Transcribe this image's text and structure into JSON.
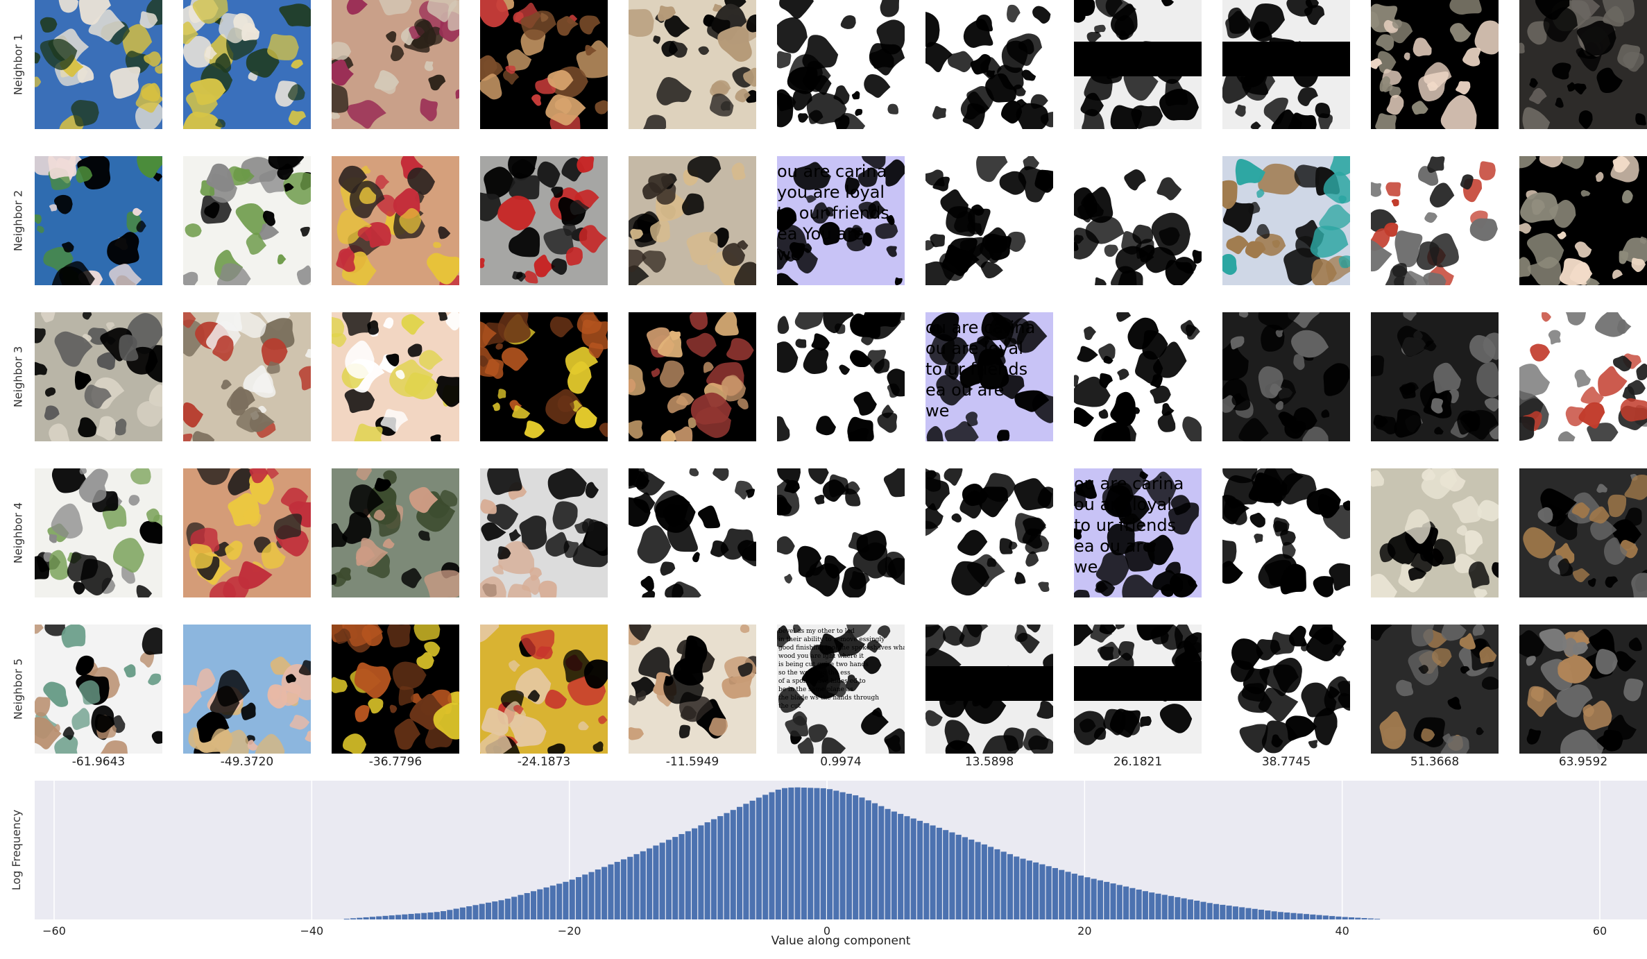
{
  "row_labels": [
    "Neighbor 1",
    "Neighbor 2",
    "Neighbor 3",
    "Neighbor 4",
    "Neighbor 5"
  ],
  "column_values": [
    "-61.9643",
    "-49.3720",
    "-36.7796",
    "-24.1873",
    "-11.5949",
    "0.9974",
    "13.5898",
    "26.1821",
    "38.7745",
    "51.3668",
    "63.9592"
  ],
  "thumbnails": [
    [
      {
        "icon": "water-slide-photo",
        "colors": [
          "#3a6fb8",
          "#e9e2d6",
          "#d8c040",
          "#1f3a1f"
        ]
      },
      {
        "icon": "water-slide-photo",
        "colors": [
          "#3a70bc",
          "#ede6da",
          "#d6c446",
          "#203b20"
        ]
      },
      {
        "icon": "sunglasses-woman-photo",
        "colors": [
          "#c9a089",
          "#2b2118",
          "#d4c8b6",
          "#9b2f56"
        ]
      },
      {
        "icon": "masked-pug-photo",
        "colors": [
          "#000000",
          "#d9a56e",
          "#7a4c2a",
          "#c93d3a"
        ]
      },
      {
        "icon": "pug-photo",
        "colors": [
          "#ded2bd",
          "#2a2724",
          "#b59a78",
          "#000000"
        ]
      },
      {
        "icon": "white-mask-pattern",
        "colors": [
          "#ffffff",
          "#000000"
        ]
      },
      {
        "icon": "white-mask-pattern",
        "colors": [
          "#ffffff",
          "#000000"
        ]
      },
      {
        "icon": "banded-mask-pattern",
        "colors": [
          "#eeeeee",
          "#000000"
        ]
      },
      {
        "icon": "banded-mask-pattern",
        "colors": [
          "#eeeeee",
          "#000000"
        ]
      },
      {
        "icon": "dark-scene-photo",
        "colors": [
          "#000000",
          "#8f8a7a",
          "#f0d9c8"
        ]
      },
      {
        "icon": "desk-device-photo",
        "colors": [
          "#2d2b29",
          "#6b6761",
          "#000000"
        ]
      }
    ],
    [
      {
        "icon": "hand-water-photo",
        "colors": [
          "#2f6cb0",
          "#000000",
          "#f0dcd8",
          "#4c8d3a"
        ]
      },
      {
        "icon": "elephant-statue-photo",
        "colors": [
          "#f3f3ef",
          "#6c9a48",
          "#888888",
          "#000000"
        ]
      },
      {
        "icon": "party-woman-photo",
        "colors": [
          "#d5a07c",
          "#c42d3a",
          "#e7c23a",
          "#2d2320"
        ]
      },
      {
        "icon": "dark-figure-photo",
        "colors": [
          "#a6a6a4",
          "#1d1d1d",
          "#c72525",
          "#000000"
        ]
      },
      {
        "icon": "pug-photo",
        "colors": [
          "#c5b9a6",
          "#332a22",
          "#d7bb8c",
          "#000000"
        ]
      },
      {
        "icon": "text-page-photo",
        "colors": [
          "#c8c3f6",
          "#000000"
        ],
        "caption": "ou are carina you are loyal to our friends ea You are we"
      },
      {
        "icon": "white-mask-pattern",
        "colors": [
          "#ffffff",
          "#000000"
        ]
      },
      {
        "icon": "white-mask-pattern",
        "colors": [
          "#ffffff",
          "#000000"
        ]
      },
      {
        "icon": "tv-box-photo",
        "colors": [
          "#cfd7e6",
          "#111111",
          "#2ca6a2",
          "#a07a4c"
        ]
      },
      {
        "icon": "dj-deck-photo",
        "colors": [
          "#ffffff",
          "#1d1d1d",
          "#c23c2c",
          "#6f6f6f"
        ]
      },
      {
        "icon": "dark-scene-photo",
        "colors": [
          "#000000",
          "#8d8a7b",
          "#f2dcc8"
        ]
      }
    ],
    [
      {
        "icon": "grey-scene-photo",
        "colors": [
          "#b9b5a7",
          "#000000",
          "#575757",
          "#d8d2c4"
        ]
      },
      {
        "icon": "bride-photo",
        "colors": [
          "#cfc3ae",
          "#f3f3f1",
          "#7b6f5d",
          "#b73c2e"
        ]
      },
      {
        "icon": "masked-child-photo",
        "colors": [
          "#f2d6c2",
          "#000000",
          "#e0d44c",
          "#ffffff"
        ]
      },
      {
        "icon": "dark-fruit-photo",
        "colors": [
          "#000000",
          "#e3c92c",
          "#6a3316",
          "#b6551f"
        ]
      },
      {
        "icon": "masked-pug-photo",
        "colors": [
          "#000000",
          "#c8966a",
          "#913531",
          "#e2b47a"
        ]
      },
      {
        "icon": "white-mask-pattern",
        "colors": [
          "#ffffff",
          "#000000"
        ]
      },
      {
        "icon": "text-page-photo",
        "colors": [
          "#c8c3f6",
          "#000000"
        ],
        "caption": "ou are carina ou are loyal to ur friends ea ou are we"
      },
      {
        "icon": "white-mask-pattern",
        "colors": [
          "#ffffff",
          "#000000"
        ]
      },
      {
        "icon": "stereo-photo",
        "colors": [
          "#1d1d1d",
          "#666666",
          "#000000"
        ]
      },
      {
        "icon": "stereo-photo",
        "colors": [
          "#1c1c1c",
          "#686868",
          "#000000"
        ]
      },
      {
        "icon": "dj-deck-photo",
        "colors": [
          "#ffffff",
          "#1d1d1d",
          "#c23c2c",
          "#6f6f6f"
        ]
      }
    ],
    [
      {
        "icon": "elephant-statue-photo",
        "colors": [
          "#f2f2ee",
          "#000000",
          "#8a8a8a",
          "#7aa259"
        ]
      },
      {
        "icon": "party-woman-photo",
        "colors": [
          "#d49c78",
          "#c12f3b",
          "#ebc741",
          "#2b2420"
        ]
      },
      {
        "icon": "man-outdoors-photo",
        "colors": [
          "#7d8a78",
          "#cc9b84",
          "#3c4b2e",
          "#000000"
        ]
      },
      {
        "icon": "tuxedo-man-photo",
        "colors": [
          "#dcdcdc",
          "#111111",
          "#d7ad95",
          "#000000"
        ]
      },
      {
        "icon": "white-mask-pattern",
        "colors": [
          "#ffffff",
          "#000000"
        ]
      },
      {
        "icon": "white-mask-pattern",
        "colors": [
          "#ffffff",
          "#000000"
        ]
      },
      {
        "icon": "white-mask-pattern",
        "colors": [
          "#ffffff",
          "#000000"
        ]
      },
      {
        "icon": "text-page-photo",
        "colors": [
          "#c8c3f6",
          "#000000"
        ],
        "caption": "ou are carina ou are loyal to ur friends ea ou are we"
      },
      {
        "icon": "white-mask-pattern",
        "colors": [
          "#ffffff",
          "#000000"
        ]
      },
      {
        "icon": "shelf-photo",
        "colors": [
          "#c8c4b2",
          "#000000",
          "#e9e4d4"
        ]
      },
      {
        "icon": "stereo-photo",
        "colors": [
          "#2a2a2a",
          "#000000",
          "#6b6b6b",
          "#a0784a"
        ]
      }
    ],
    [
      {
        "icon": "skirt-legs-photo",
        "colors": [
          "#f3f3f3",
          "#000000",
          "#b98e6e",
          "#6b9e8a"
        ]
      },
      {
        "icon": "sunhat-woman-photo",
        "colors": [
          "#8cb6de",
          "#d9b77e",
          "#e8b9a6",
          "#000000"
        ]
      },
      {
        "icon": "dark-fruit-photo",
        "colors": [
          "#000000",
          "#e0c82a",
          "#6a3417",
          "#b5541f"
        ]
      },
      {
        "icon": "masked-pug-photo",
        "colors": [
          "#d9b332",
          "#000000",
          "#c7342c",
          "#e4c7a0"
        ]
      },
      {
        "icon": "pug-photo",
        "colors": [
          "#e8dfcf",
          "#2b2622",
          "#000000",
          "#c89b75"
        ]
      },
      {
        "icon": "book-page-photo",
        "colors": [
          "#efefef",
          "#222222",
          "#000000"
        ],
        "caption": "bevel as my other to led in their ability to remove essingly good finishing tool the spokeshaves what wood you are ight where it is being cut quire two hands so the wood be the ess of a spokeshave hides ed to be in the same plane as the blade ws the hands through the cut"
      },
      {
        "icon": "banded-mask-pattern",
        "colors": [
          "#eeeeee",
          "#000000"
        ]
      },
      {
        "icon": "banded-mask-pattern",
        "colors": [
          "#f0f0f0",
          "#000000"
        ]
      },
      {
        "icon": "white-mask-pattern",
        "colors": [
          "#ffffff",
          "#000000"
        ]
      },
      {
        "icon": "stereo-photo",
        "colors": [
          "#2a2a2a",
          "#000000",
          "#666666",
          "#a07a4e"
        ]
      },
      {
        "icon": "car-console-photo",
        "colors": [
          "#222222",
          "#000000",
          "#7b7b7b",
          "#b08558"
        ]
      }
    ]
  ],
  "chart_data": {
    "type": "bar",
    "title": "",
    "xlabel": "Value along component",
    "ylabel": "Log Frequency",
    "xlim": [
      -62,
      63
    ],
    "ylim": [
      0,
      6.3
    ],
    "x_ticks": [
      -60,
      -40,
      -20,
      0,
      20,
      40,
      60
    ],
    "x_tick_labels": [
      "−60",
      "−40",
      "−20",
      "0",
      "20",
      "40",
      "60"
    ],
    "grid": true,
    "background": "#eaeaf2",
    "bar_color": "#4c72b0",
    "bin_width": 0.5,
    "bins": {
      "x": [
        -37.5,
        -30,
        -25,
        -20,
        -15,
        -10,
        -5,
        -3.5,
        -2.5,
        0,
        2.5,
        5,
        10,
        15,
        20,
        25,
        30,
        35,
        40,
        43
      ],
      "y": [
        0.02,
        0.35,
        0.9,
        1.75,
        2.9,
        4.2,
        5.6,
        5.95,
        6.0,
        5.95,
        5.6,
        4.95,
        3.9,
        2.8,
        1.95,
        1.25,
        0.72,
        0.35,
        0.12,
        0.02
      ]
    }
  }
}
